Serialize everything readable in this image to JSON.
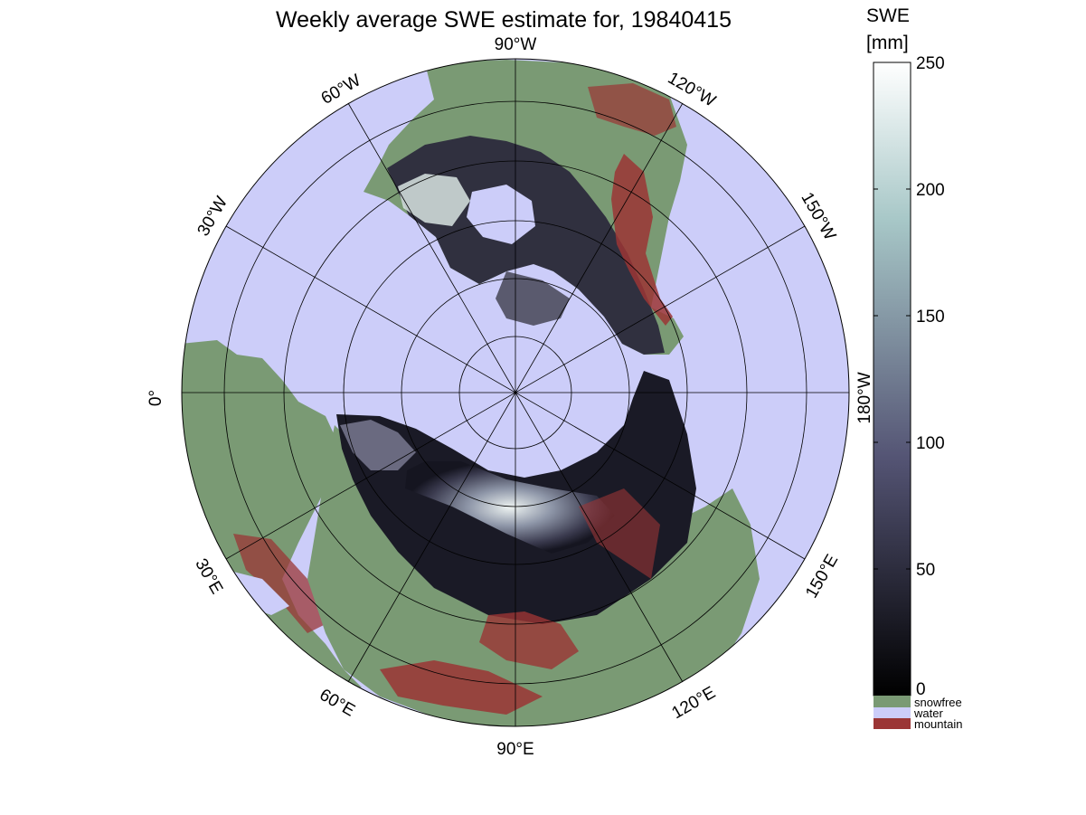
{
  "title": "Weekly average SWE estimate for, 19840415",
  "colorbar": {
    "heading_line1": "SWE",
    "heading_line2": "[mm]",
    "ticks": [
      "250",
      "200",
      "150",
      "100",
      "50",
      "0"
    ],
    "tick_values": [
      250,
      200,
      150,
      100,
      50,
      0
    ],
    "range": [
      0,
      250
    ],
    "colormap": "bone (black to white)",
    "categories": [
      {
        "label": "snowfree",
        "color": "#7a9a74"
      },
      {
        "label": "water",
        "color": "#cccdf9"
      },
      {
        "label": "mountain",
        "color": "#9b3535"
      }
    ]
  },
  "map": {
    "projection": "north polar stereographic",
    "ocean_color": "#cccdf9",
    "land_color": "#7a9a74",
    "mountain_color": "#9b3535",
    "meridian_labels": [
      {
        "lon": "0",
        "text": "0°"
      },
      {
        "lon": "30W",
        "text": "30°W"
      },
      {
        "lon": "60W",
        "text": "60°W"
      },
      {
        "lon": "90W",
        "text": "90°W"
      },
      {
        "lon": "120W",
        "text": "120°W"
      },
      {
        "lon": "150W",
        "text": "150°W"
      },
      {
        "lon": "180W",
        "text": "180°W"
      },
      {
        "lon": "150E",
        "text": "150°E"
      },
      {
        "lon": "120E",
        "text": "120°E"
      },
      {
        "lon": "90E",
        "text": "90°E"
      },
      {
        "lon": "60E",
        "text": "60°E"
      },
      {
        "lon": "30E",
        "text": "30°E"
      }
    ]
  }
}
